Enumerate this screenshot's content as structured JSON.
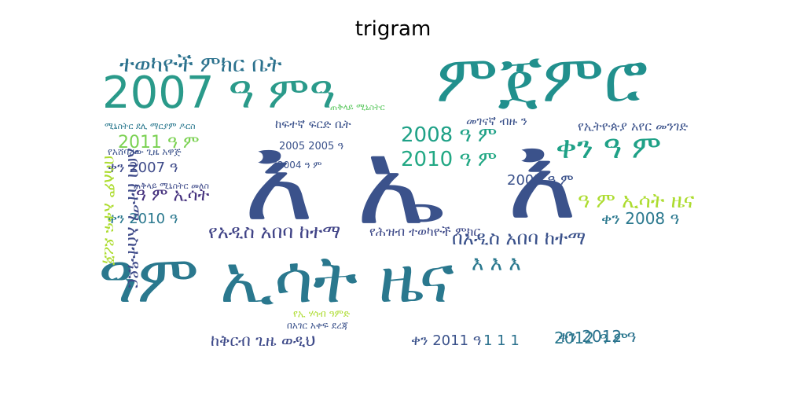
{
  "title": "trigram",
  "words": [
    {
      "text": "2007 ዓ ምዓ",
      "color": "#2a9a8a"
    },
    {
      "text": "ምጀምሮ",
      "color": "#21908d"
    },
    {
      "text": "ተወካዮች ምክር ቤት",
      "color": "#2c728e"
    },
    {
      "text": "እ",
      "color": "#3b528b"
    },
    {
      "text": "ኤ",
      "color": "#3b528b"
    },
    {
      "text": "እ",
      "color": "#3b528b"
    },
    {
      "text": "ዓም ኢሳት ዜና",
      "color": "#2a788e"
    },
    {
      "text": "ቀን ዓ ም",
      "color": "#1fa187"
    },
    {
      "text": "2008 ዓ ም",
      "color": "#1fa187"
    },
    {
      "text": "2010 ዓ ም",
      "color": "#22a884"
    },
    {
      "text": "2011 ዓ ም",
      "color": "#7ad151"
    },
    {
      "text": "የኢትዮጵያ አየር መንገድ",
      "color": "#3b528b"
    },
    {
      "text": "የአዲስ አበባ ከተማ",
      "color": "#414487"
    },
    {
      "text": "በአዲስ አበባ ከተማ",
      "color": "#3b528b"
    },
    {
      "text": "ቀን 2008 ዓ",
      "color": "#2a788e"
    },
    {
      "text": "ቀን 2012 ዓ",
      "color": "#2c728e"
    },
    {
      "text": "ዓ ም ኢሳት ዜና",
      "color": "#addc30"
    },
    {
      "text": "2005 ዓ ም",
      "color": "#3b528b"
    },
    {
      "text": "ቀን 2007 ዓ",
      "color": "#3e4a89"
    },
    {
      "text": "ቀን 2010 ዓ",
      "color": "#2a788e"
    },
    {
      "text": "ዓ ም ኢሳት",
      "color": "#46327e"
    },
    {
      "text": "ከፍተኛ ፍርድ ቤት",
      "color": "#3b528b"
    },
    {
      "text": "መገናኛ ብዙ ን",
      "color": "#3b528b"
    },
    {
      "text": "2012 ዓ ም",
      "color": "#2a788e"
    },
    {
      "text": "ቀን 2011 ዓ",
      "color": "#3b528b"
    },
    {
      "text": "1 1 1",
      "color": "#2c728e"
    },
    {
      "text": "ከቅርብ ጊዜ ወዲህ",
      "color": "#3e4a89"
    },
    {
      "text": "እ እ እ",
      "color": "#2a788e"
    },
    {
      "text": "የሕዝብ ተወካዮች ምክር",
      "color": "#3e4a89"
    },
    {
      "text": "በሳለም አቀፍ ደረጃ",
      "color": "#addc30"
    },
    {
      "text": "አበባ ከተማ አስተዳደር",
      "color": "#3e4a89"
    },
    {
      "text": "2005 2005 ዓ",
      "color": "#3b528b"
    },
    {
      "text": "2004 ዓ ም",
      "color": "#3b528b"
    },
    {
      "text": "የአሸባሪው ጊዜ አዋጅ",
      "color": "#3b528b"
    },
    {
      "text": "ሚኒስትር ደሊ ማርያም ዶርስ",
      "color": "#2a788e"
    },
    {
      "text": "ጠቅላይ ሚኒስትር መለስ",
      "color": "#3e4a89"
    },
    {
      "text": "በአገር አቀፍ ደረጃ",
      "color": "#3b528b"
    },
    {
      "text": "የኢ ሃሳብ ዓምድ",
      "color": "#addc30"
    },
    {
      "text": "ጠቅላይ ሚኒስትር",
      "color": "#5ec962"
    }
  ]
}
